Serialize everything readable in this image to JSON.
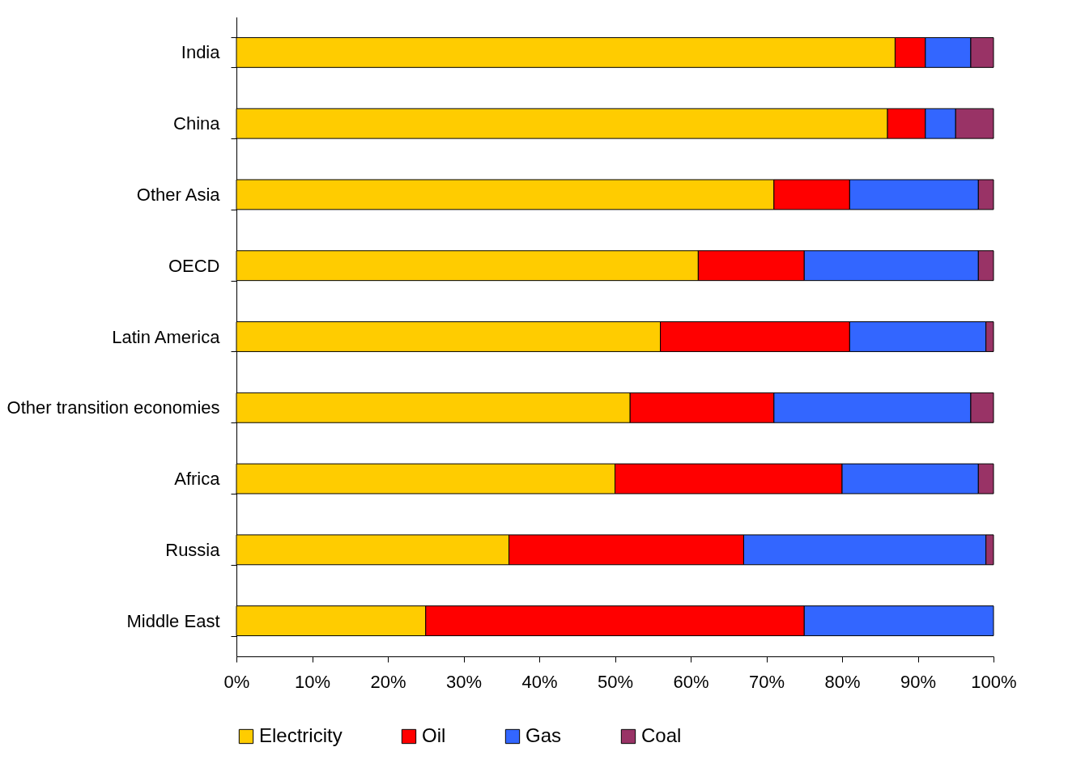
{
  "chart_data": {
    "type": "bar",
    "orientation": "horizontal",
    "stacked": true,
    "categories": [
      "India",
      "China",
      "Other Asia",
      "OECD",
      "Latin America",
      "Other transition economies",
      "Africa",
      "Russia",
      "Middle East"
    ],
    "series": [
      {
        "name": "Electricity",
        "color": "#ffcc00",
        "values": [
          87,
          86,
          71,
          61,
          56,
          52,
          50,
          36,
          25
        ]
      },
      {
        "name": "Oil",
        "color": "#ff0000",
        "values": [
          4,
          5,
          10,
          14,
          25,
          19,
          30,
          31,
          50
        ]
      },
      {
        "name": "Gas",
        "color": "#3366ff",
        "values": [
          6,
          4,
          17,
          23,
          18,
          26,
          18,
          32,
          25
        ]
      },
      {
        "name": "Coal",
        "color": "#993366",
        "values": [
          3,
          5,
          2,
          2,
          1,
          3,
          2,
          1,
          0
        ]
      }
    ],
    "xlim": [
      0,
      100
    ],
    "xticks": [
      {
        "value": 0,
        "label": "0%"
      },
      {
        "value": 10,
        "label": "10%"
      },
      {
        "value": 20,
        "label": "20%"
      },
      {
        "value": 30,
        "label": "30%"
      },
      {
        "value": 40,
        "label": "40%"
      },
      {
        "value": 50,
        "label": "50%"
      },
      {
        "value": 60,
        "label": "60%"
      },
      {
        "value": 70,
        "label": "70%"
      },
      {
        "value": 80,
        "label": "80%"
      },
      {
        "value": 90,
        "label": "90%"
      },
      {
        "value": 100,
        "label": "100%"
      }
    ],
    "grid": false,
    "legend": "bottom"
  }
}
